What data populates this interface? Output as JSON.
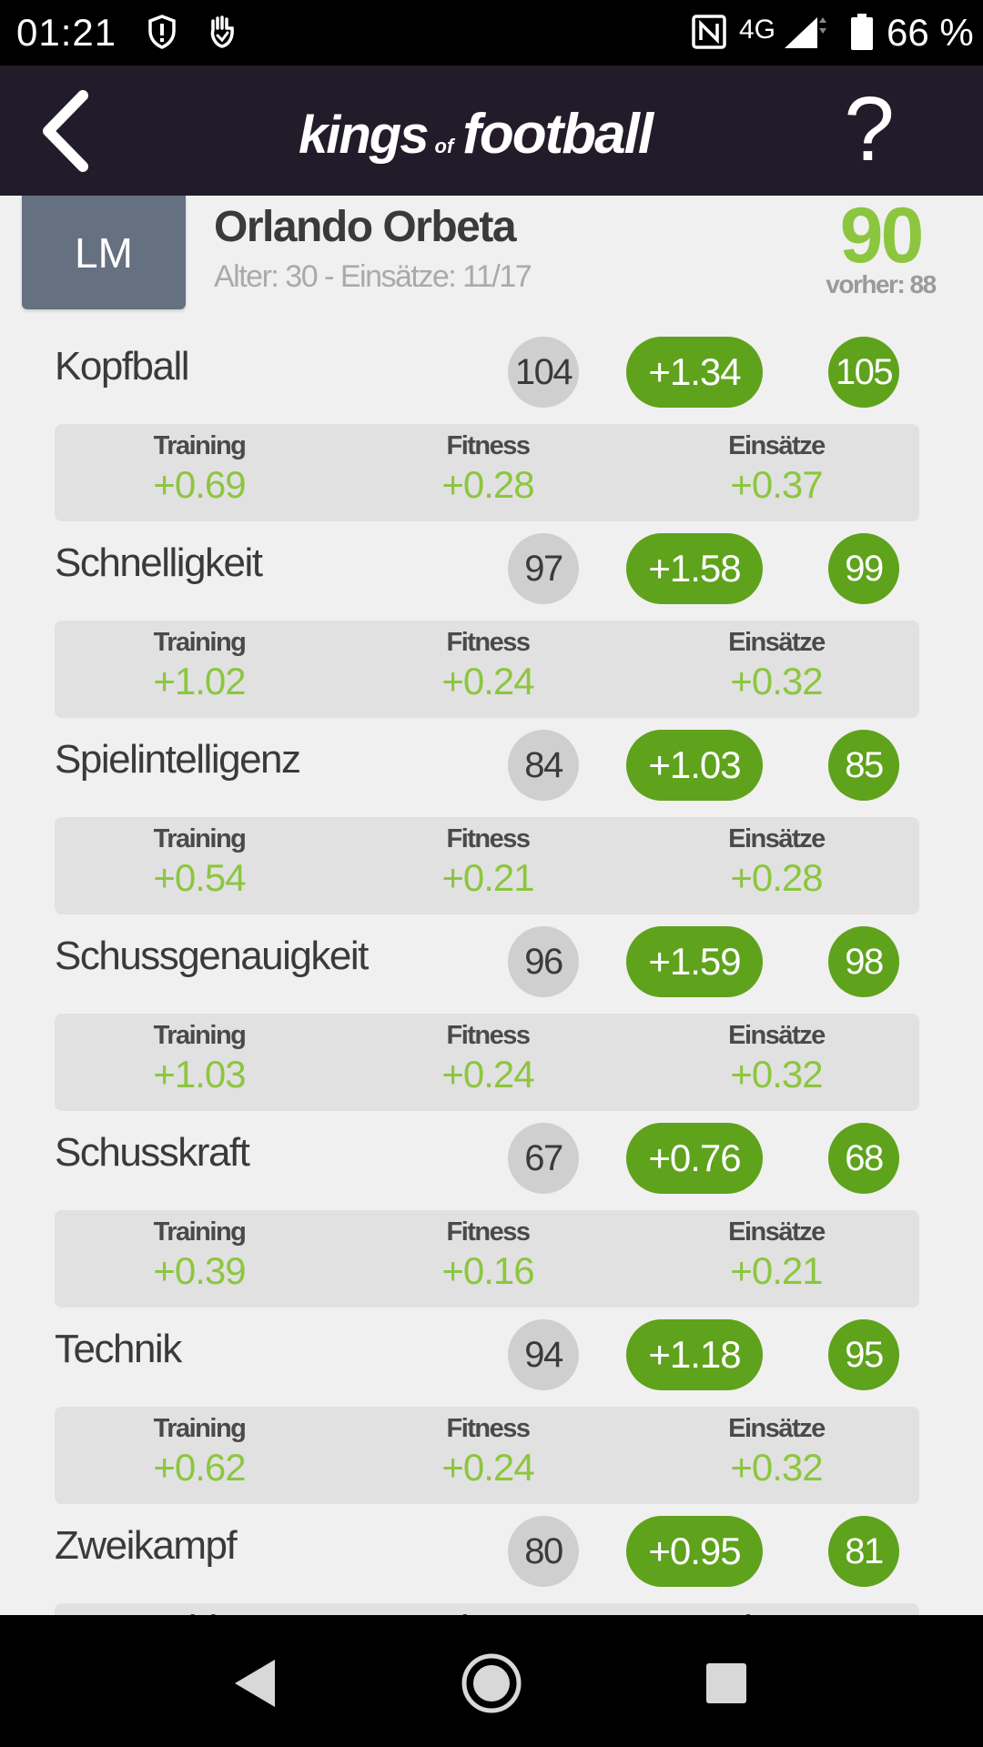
{
  "status_bar": {
    "time": "01:21",
    "network": "4G",
    "battery": "66 %",
    "icons": [
      "shield-alert-icon",
      "hand-shield-icon",
      "nfc-icon",
      "signal-icon",
      "battery-icon"
    ]
  },
  "header": {
    "logo_part1": "kings",
    "logo_part2": "of",
    "logo_part3": "football",
    "help_label": "?",
    "icons": [
      "back-arrow-icon"
    ]
  },
  "player": {
    "position": "LM",
    "name": "Orlando Orbeta",
    "subtitle": "Alter: 30 - Einsätze: 11/17",
    "rating": "90",
    "previous": "vorher: 88"
  },
  "breakdown_labels": {
    "training": "Training",
    "fitness": "Fitness",
    "einsaetze": "Einsätze"
  },
  "attributes": [
    {
      "name": "Kopfball",
      "old": "104",
      "delta": "+1.34",
      "new": "105",
      "training": "+0.69",
      "fitness": "+0.28",
      "einsaetze": "+0.37"
    },
    {
      "name": "Schnelligkeit",
      "old": "97",
      "delta": "+1.58",
      "new": "99",
      "training": "+1.02",
      "fitness": "+0.24",
      "einsaetze": "+0.32"
    },
    {
      "name": "Spielintelligenz",
      "old": "84",
      "delta": "+1.03",
      "new": "85",
      "training": "+0.54",
      "fitness": "+0.21",
      "einsaetze": "+0.28"
    },
    {
      "name": "Schussgenauigkeit",
      "old": "96",
      "delta": "+1.59",
      "new": "98",
      "training": "+1.03",
      "fitness": "+0.24",
      "einsaetze": "+0.32"
    },
    {
      "name": "Schusskraft",
      "old": "67",
      "delta": "+0.76",
      "new": "68",
      "training": "+0.39",
      "fitness": "+0.16",
      "einsaetze": "+0.21"
    },
    {
      "name": "Technik",
      "old": "94",
      "delta": "+1.18",
      "new": "95",
      "training": "+0.62",
      "fitness": "+0.24",
      "einsaetze": "+0.32"
    },
    {
      "name": "Zweikampf",
      "old": "80",
      "delta": "+0.95",
      "new": "81"
    }
  ],
  "colors": {
    "header_bg": "#221c2a",
    "accent_green": "#5fa21c",
    "light_green": "#8cc63f",
    "position_badge": "#657080"
  },
  "nav_bar": {
    "icons": [
      "nav-back-icon",
      "nav-home-icon",
      "nav-recents-icon"
    ]
  }
}
